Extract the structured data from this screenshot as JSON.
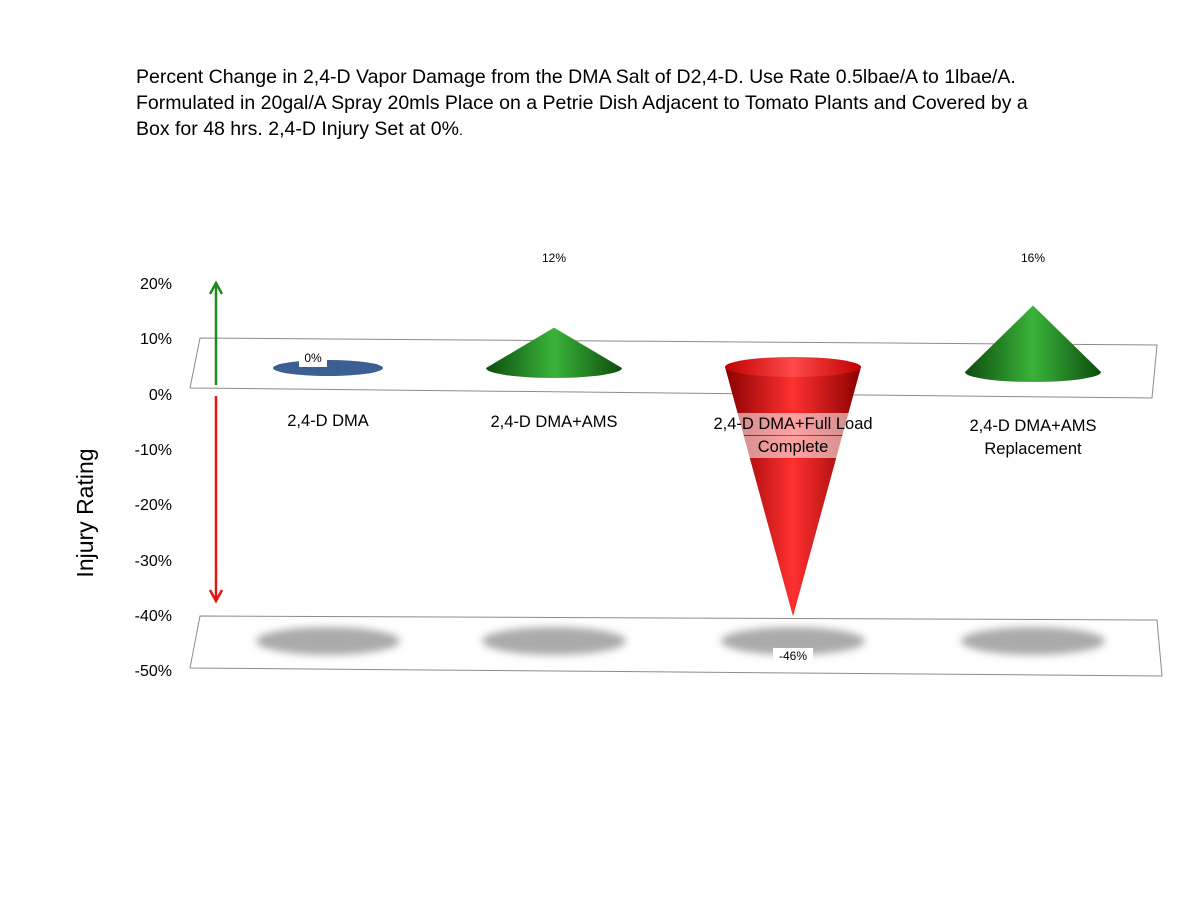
{
  "chart_data": {
    "type": "bar",
    "title_lines": [
      "Percent Change in 2,4-D Vapor Damage from the DMA Salt of D2,4-D. Use Rate 0.5lbae/A to 1lbae/A.",
      "Formulated in 20gal/A Spray 20mls Place on a Petrie Dish Adjacent to Tomato Plants and Covered by a",
      "Box for 48 hrs. 2,4-D Injury Set at 0%",
      "."
    ],
    "ylabel": "Injury Rating",
    "xlabel": "",
    "ylim": [
      -50,
      20
    ],
    "yticks": [
      20,
      10,
      0,
      -10,
      -20,
      -30,
      -40,
      -50
    ],
    "ytick_labels": [
      "20%",
      "10%",
      "0%",
      "-10%",
      "-20%",
      "-30%",
      "-40%",
      "-50%"
    ],
    "categories": [
      [
        "2,4-D DMA"
      ],
      [
        "2,4-D DMA+AMS"
      ],
      [
        "2,4-D DMA+Full Load",
        "Complete"
      ],
      [
        "2,4-D DMA+AMS",
        "Replacement"
      ]
    ],
    "values": [
      0,
      12,
      -46,
      16
    ],
    "value_labels": [
      "0%",
      "12%",
      "-46%",
      "16%"
    ],
    "colors": {
      "positive": "#1f8f1f",
      "negative": "#e01010",
      "zero": "#3b5f92",
      "up_arrow": "#1e8a1e",
      "down_arrow": "#e01515",
      "shadow": "#aaaaaa"
    }
  }
}
